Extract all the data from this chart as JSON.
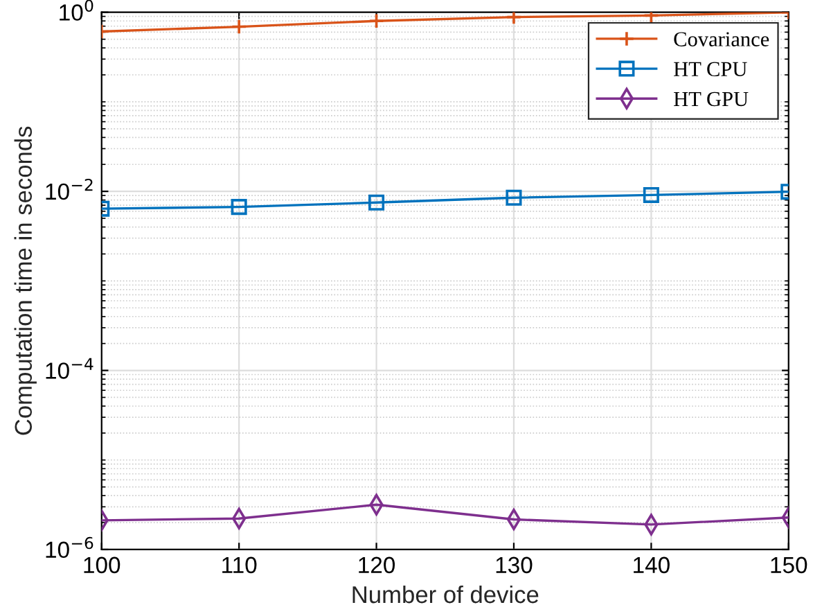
{
  "chart_data": {
    "type": "line",
    "xlabel": "Number of device",
    "ylabel": "Computation time in seconds",
    "x": [
      100,
      110,
      120,
      130,
      140,
      150
    ],
    "series": [
      {
        "name": "Covariance",
        "color": "#d95319",
        "marker": "cross",
        "values": [
          0.61,
          0.69,
          0.8,
          0.885,
          0.92,
          1.0
        ]
      },
      {
        "name": "HT CPU",
        "color": "#0072bd",
        "marker": "square",
        "values": [
          0.0064,
          0.0067,
          0.0075,
          0.0085,
          0.0091,
          0.0099
        ]
      },
      {
        "name": "HT GPU",
        "color": "#7e2f8e",
        "marker": "diamond",
        "values": [
          2.12e-06,
          2.22e-06,
          3.17e-06,
          2.17e-06,
          1.9e-06,
          2.28e-06
        ]
      }
    ],
    "log": "y",
    "xlim": [
      100,
      150
    ],
    "xticks": [
      100,
      110,
      120,
      130,
      140,
      150
    ],
    "ylim": [
      1e-06,
      1
    ],
    "yticks": [
      {
        "value": 1e-06,
        "label": "10$^{−6}$"
      },
      {
        "value": 0.0001,
        "label": "10$^{−4}$"
      },
      {
        "value": 0.01,
        "label": "10$^{−2}$"
      },
      {
        "value": 1,
        "label": "10$^{0}$"
      }
    ],
    "grid": true,
    "legend": "top right",
    "line_style": "solid"
  }
}
